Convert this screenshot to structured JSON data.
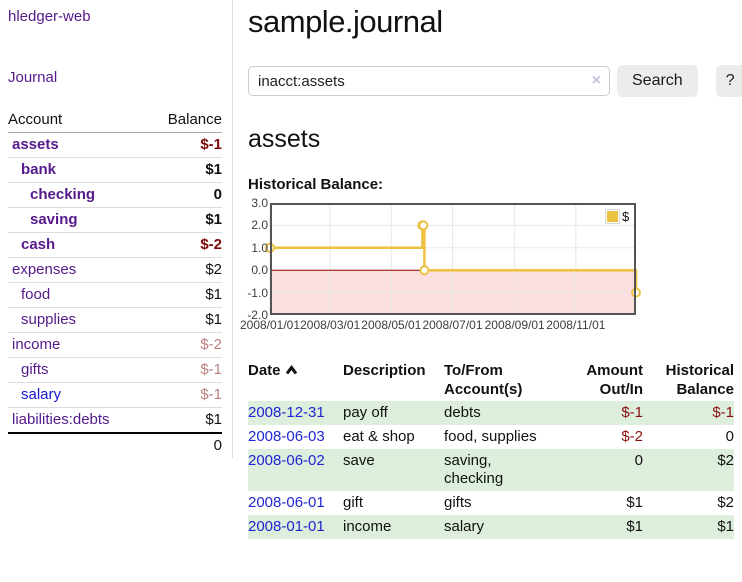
{
  "colors": {
    "link_visited_purple": "#551a8b",
    "link_unvisited_blue": "#1616d6",
    "date_link_blue": "#2026d2",
    "negative_strong": "#7f0808",
    "negative": "#8b0f0f",
    "negative_pale": "#bc7f7f",
    "row_stripe_green": "#ddeedd",
    "button_gray": "#ececec"
  },
  "sidebar": {
    "brand": "hledger-web",
    "nav": {
      "journal": "Journal"
    },
    "accounts_table": {
      "col_account": "Account",
      "col_balance": "Balance",
      "rows": [
        {
          "name": "assets",
          "balance": "$-1",
          "indent": 0,
          "bold": true,
          "negative": "strong",
          "visited": true
        },
        {
          "name": "bank",
          "balance": "$1",
          "indent": 1,
          "bold": true,
          "negative": null,
          "visited": true
        },
        {
          "name": "checking",
          "balance": "0",
          "indent": 2,
          "bold": true,
          "negative": null,
          "visited": true
        },
        {
          "name": "saving",
          "balance": "$1",
          "indent": 2,
          "bold": true,
          "negative": null,
          "visited": true
        },
        {
          "name": "cash",
          "balance": "$-2",
          "indent": 1,
          "bold": true,
          "negative": "strong",
          "visited": true
        },
        {
          "name": "expenses",
          "balance": "$2",
          "indent": 0,
          "bold": false,
          "negative": null,
          "visited": true
        },
        {
          "name": "food",
          "balance": "$1",
          "indent": 1,
          "bold": false,
          "negative": null,
          "visited": true
        },
        {
          "name": "supplies",
          "balance": "$1",
          "indent": 1,
          "bold": false,
          "negative": null,
          "visited": true
        },
        {
          "name": "income",
          "balance": "$-2",
          "indent": 0,
          "bold": false,
          "negative": "pale",
          "visited": true
        },
        {
          "name": "gifts",
          "balance": "$-1",
          "indent": 1,
          "bold": false,
          "negative": "pale",
          "visited": true
        },
        {
          "name": "salary",
          "balance": "$-1",
          "indent": 1,
          "bold": false,
          "negative": "pale",
          "visited": false
        },
        {
          "name": "liabilities:debts",
          "balance": "$1",
          "indent": 0,
          "bold": false,
          "negative": null,
          "visited": true
        }
      ],
      "total": "0"
    }
  },
  "main": {
    "title": "sample.journal",
    "search": {
      "value": "inacct:assets",
      "clear_icon": "×",
      "search_button": "Search",
      "help_button": "?"
    },
    "account_heading": "assets"
  },
  "chart_data": {
    "type": "line",
    "subtype": "step",
    "title": "Historical Balance:",
    "x_domain_days": [
      0,
      365
    ],
    "ylim": [
      -2.0,
      3.0
    ],
    "grid": true,
    "legend_position": "top-right",
    "series": [
      {
        "name": "$",
        "color": "#edc240",
        "points": [
          {
            "date": "2008/01/01",
            "day": 0,
            "value": 1.0
          },
          {
            "date": "2008/06/01",
            "day": 152,
            "value": 2.0
          },
          {
            "date": "2008/06/02",
            "day": 153,
            "value": 2.0
          },
          {
            "date": "2008/06/03",
            "day": 154,
            "value": 0.0
          },
          {
            "date": "2008/12/31",
            "day": 365,
            "value": -1.0
          }
        ]
      }
    ],
    "x_ticks": [
      {
        "day": 0,
        "label": "2008/01/01"
      },
      {
        "day": 60,
        "label": "2008/03/01"
      },
      {
        "day": 121,
        "label": "2008/05/01"
      },
      {
        "day": 182,
        "label": "2008/07/01"
      },
      {
        "day": 244,
        "label": "2008/09/01"
      },
      {
        "day": 305,
        "label": "2008/11/01"
      }
    ],
    "y_ticks": [
      {
        "value": 3,
        "label": "3.0"
      },
      {
        "value": 2,
        "label": "2.0"
      },
      {
        "value": 1,
        "label": "1.0"
      },
      {
        "value": 0,
        "label": "0.0"
      },
      {
        "value": -1,
        "label": "-1.0"
      },
      {
        "value": -2,
        "label": "-2.0"
      }
    ],
    "colors": {
      "negative_region": "#fbdede",
      "zero_line": "#8b0000",
      "grid": "#e8e8e8",
      "border": "#545454",
      "marker_fill": "#ffffff"
    }
  },
  "register": {
    "columns": [
      "Date",
      "Description",
      "To/From Account(s)",
      "Amount Out/In",
      "Historical Balance"
    ],
    "sort": {
      "column": "Date",
      "direction": "asc"
    },
    "rows": [
      {
        "date": "2008-12-31",
        "description": "pay off",
        "accounts": "debts",
        "amount": "$-1",
        "amount_negative": true,
        "balance": "$-1",
        "balance_negative": true
      },
      {
        "date": "2008-06-03",
        "description": "eat & shop",
        "accounts": "food, supplies",
        "amount": "$-2",
        "amount_negative": true,
        "balance": "0",
        "balance_negative": false
      },
      {
        "date": "2008-06-02",
        "description": "save",
        "accounts": "saving, checking",
        "amount": "0",
        "amount_negative": false,
        "balance": "$2",
        "balance_negative": false
      },
      {
        "date": "2008-06-01",
        "description": "gift",
        "accounts": "gifts",
        "amount": "$1",
        "amount_negative": false,
        "balance": "$2",
        "balance_negative": false
      },
      {
        "date": "2008-01-01",
        "description": "income",
        "accounts": "salary",
        "amount": "$1",
        "amount_negative": false,
        "balance": "$1",
        "balance_negative": false
      }
    ]
  }
}
